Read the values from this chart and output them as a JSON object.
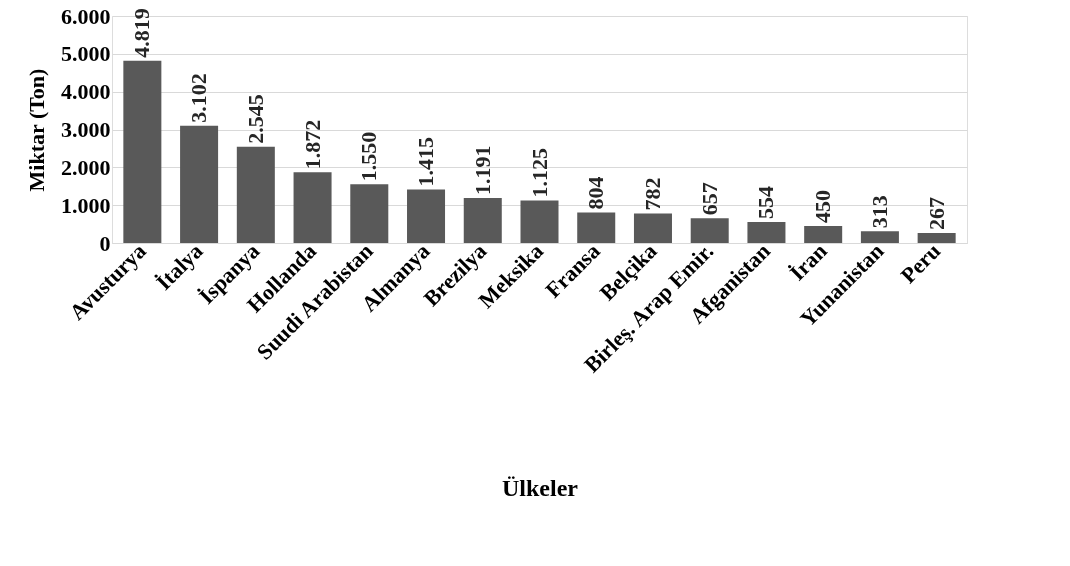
{
  "chart_data": {
    "type": "bar",
    "xlabel": "Ülkeler",
    "ylabel": "Miktar (Ton)",
    "categories": [
      "Avusturya",
      "İtalya",
      "İspanya",
      "Hollanda",
      "Suudi Arabistan",
      "Almanya",
      "Brezilya",
      "Meksika",
      "Fransa",
      "Belçika",
      "Birleş. Arap Emir.",
      "Afganistan",
      "İran",
      "Yunanistan",
      "Peru"
    ],
    "values": [
      4819,
      3102,
      2545,
      1872,
      1550,
      1415,
      1191,
      1125,
      804,
      782,
      657,
      554,
      450,
      313,
      267
    ],
    "value_labels": [
      "4.819",
      "3.102",
      "2.545",
      "1.872",
      "1.550",
      "1.415",
      "1.191",
      "1.125",
      "804",
      "782",
      "657",
      "554",
      "450",
      "313",
      "267"
    ],
    "color": "#595959",
    "ylim": [
      0,
      6000
    ],
    "yticks": [
      {
        "value": 0,
        "label": "0"
      },
      {
        "value": 1000,
        "label": "1.000"
      },
      {
        "value": 2000,
        "label": "2.000"
      },
      {
        "value": 3000,
        "label": "3.000"
      },
      {
        "value": 4000,
        "label": "4.000"
      },
      {
        "value": 5000,
        "label": "5.000"
      },
      {
        "value": 6000,
        "label": "6.000"
      }
    ],
    "grid": "y"
  }
}
